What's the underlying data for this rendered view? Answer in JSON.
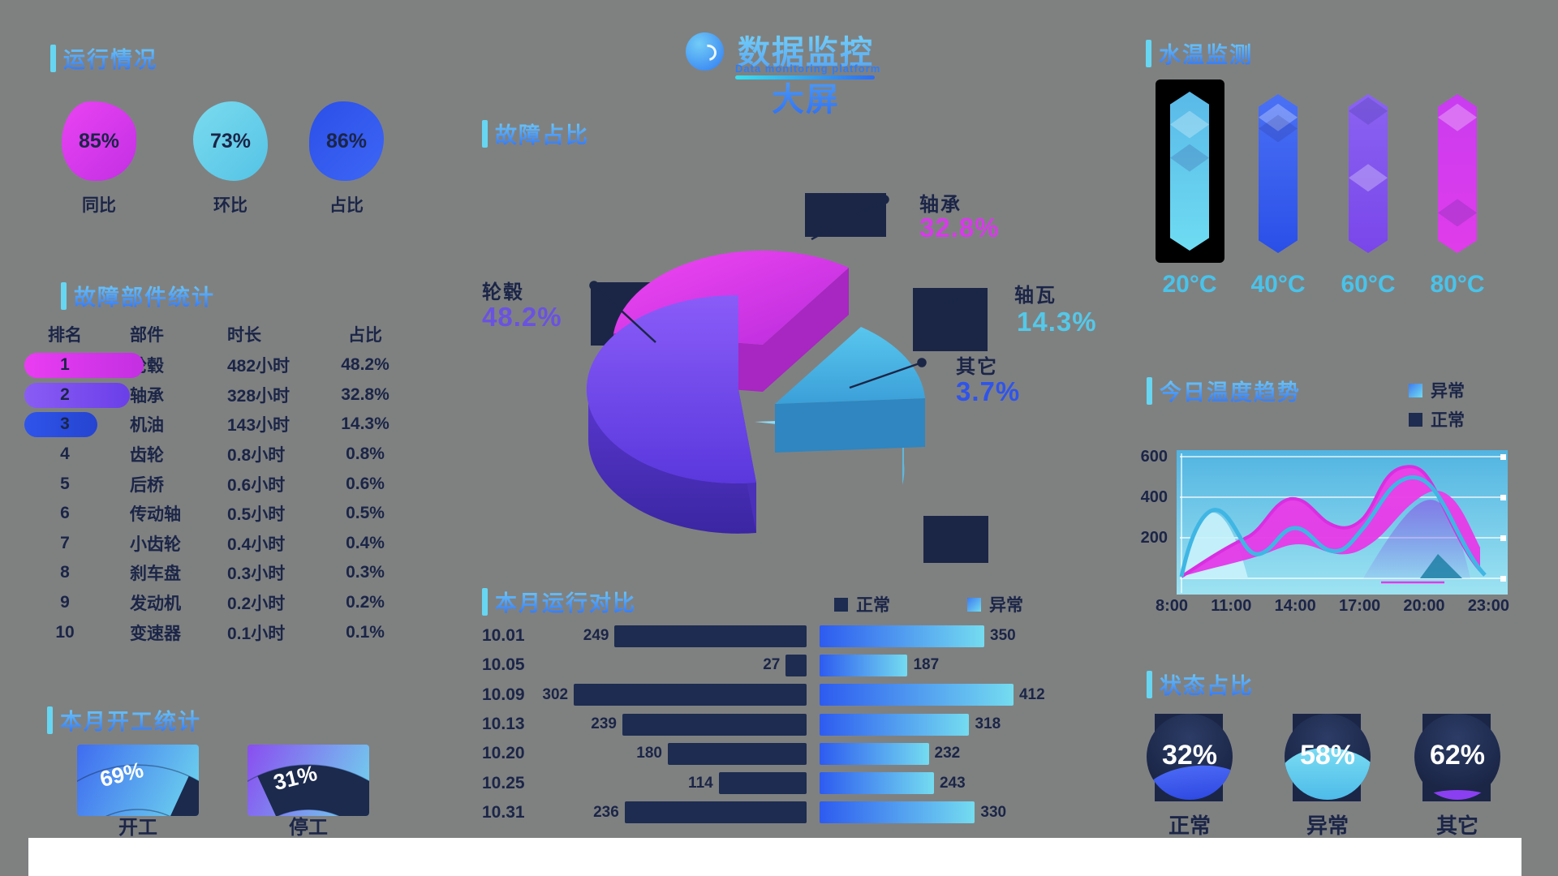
{
  "main_header": {
    "title": "数据监控大屏",
    "subtitle": "Data monitoring platform"
  },
  "overview": {
    "title": "运行情况",
    "chips": [
      {
        "value": "85%",
        "label": "同比"
      },
      {
        "value": "73%",
        "label": "环比"
      },
      {
        "value": "86%",
        "label": "占比"
      }
    ]
  },
  "rank_table": {
    "title": "故障部件统计",
    "columns": {
      "rank": "排名",
      "part": "部件",
      "hours": "时长",
      "pct": "占比"
    },
    "rows": [
      {
        "rank": "1",
        "part": "轮毂",
        "hours": "482小时",
        "pct": "48.2%"
      },
      {
        "rank": "2",
        "part": "轴承",
        "hours": "328小时",
        "pct": "32.8%"
      },
      {
        "rank": "3",
        "part": "机油",
        "hours": "143小时",
        "pct": "14.3%"
      },
      {
        "rank": "4",
        "part": "齿轮",
        "hours": "0.8小时",
        "pct": "0.8%"
      },
      {
        "rank": "5",
        "part": "后桥",
        "hours": "0.6小时",
        "pct": "0.6%"
      },
      {
        "rank": "6",
        "part": "传动轴",
        "hours": "0.5小时",
        "pct": "0.5%"
      },
      {
        "rank": "7",
        "part": "小齿轮",
        "hours": "0.4小时",
        "pct": "0.4%"
      },
      {
        "rank": "8",
        "part": "刹车盘",
        "hours": "0.3小时",
        "pct": "0.3%"
      },
      {
        "rank": "9",
        "part": "发动机",
        "hours": "0.2小时",
        "pct": "0.2%"
      },
      {
        "rank": "10",
        "part": "变速器",
        "hours": "0.1小时",
        "pct": "0.1%"
      }
    ]
  },
  "gauges": {
    "title": "本月开工统计",
    "items": [
      {
        "value": "69%",
        "label": "开工"
      },
      {
        "value": "31%",
        "label": "停工"
      }
    ]
  },
  "pie": {
    "title": "故障占比",
    "slices": [
      {
        "name": "轮毂",
        "pct": "48.2%"
      },
      {
        "name": "轴承",
        "pct": "32.8%"
      },
      {
        "name": "轴瓦",
        "pct": "14.3%"
      },
      {
        "name": "其它",
        "pct": "3.7%"
      }
    ]
  },
  "tornado": {
    "title": "本月运行对比",
    "legend": [
      {
        "label": "正常"
      },
      {
        "label": "异常"
      }
    ],
    "rows": [
      {
        "date": "10.01",
        "normal": 249,
        "abnormal": 350
      },
      {
        "date": "10.05",
        "normal": 27,
        "abnormal": 187
      },
      {
        "date": "10.09",
        "normal": 302,
        "abnormal": 412
      },
      {
        "date": "10.13",
        "normal": 239,
        "abnormal": 318
      },
      {
        "date": "10.20",
        "normal": 180,
        "abnormal": 232
      },
      {
        "date": "10.25",
        "normal": 114,
        "abnormal": 243
      },
      {
        "date": "10.31",
        "normal": 236,
        "abnormal": 330
      }
    ]
  },
  "thermo": {
    "title": "水温监测",
    "bars": [
      {
        "label": "20°C"
      },
      {
        "label": "40°C"
      },
      {
        "label": "60°C"
      },
      {
        "label": "80°C"
      }
    ]
  },
  "area": {
    "title": "今日温度趋势",
    "legend": [
      {
        "label": "异常"
      },
      {
        "label": "正常"
      }
    ],
    "y_ticks": [
      "600",
      "400",
      "200"
    ],
    "x_ticks": [
      "8:00",
      "11:00",
      "14:00",
      "17:00",
      "20:00",
      "23:00"
    ]
  },
  "liquid": {
    "title": "状态占比",
    "items": [
      {
        "value": "32%",
        "label": "正常"
      },
      {
        "value": "58%",
        "label": "异常"
      },
      {
        "value": "62%",
        "label": "其它"
      }
    ]
  },
  "colors": {
    "accent_cyan": "#66d6f2",
    "accent_blue": "#2b6df5",
    "magenta": "#d63be8",
    "purple": "#6a52e0",
    "navy": "#1b2547"
  },
  "chart_data": [
    {
      "type": "pie",
      "title": "故障占比",
      "labels": [
        "轮毂",
        "轴承",
        "轴瓦",
        "其它"
      ],
      "values": [
        48.2,
        32.8,
        14.3,
        3.7
      ],
      "colors": [
        "#7a4ff0",
        "#e23ae8",
        "#49b8e8",
        "#8fdcf5"
      ]
    },
    {
      "type": "table",
      "title": "故障部件统计",
      "columns": [
        "排名",
        "部件",
        "时长",
        "占比"
      ],
      "rows": [
        [
          "1",
          "轮毂",
          "482小时",
          "48.2%"
        ],
        [
          "2",
          "轴承",
          "328小时",
          "32.8%"
        ],
        [
          "3",
          "机油",
          "143小时",
          "14.3%"
        ],
        [
          "4",
          "齿轮",
          "0.8小时",
          "0.8%"
        ],
        [
          "5",
          "后桥",
          "0.6小时",
          "0.6%"
        ],
        [
          "6",
          "传动轴",
          "0.5小时",
          "0.5%"
        ],
        [
          "7",
          "小齿轮",
          "0.4小时",
          "0.4%"
        ],
        [
          "8",
          "刹车盘",
          "0.3小时",
          "0.3%"
        ],
        [
          "9",
          "发动机",
          "0.2小时",
          "0.2%"
        ],
        [
          "10",
          "变速器",
          "0.1小时",
          "0.1%"
        ]
      ]
    },
    {
      "type": "gauge",
      "title": "本月开工统计",
      "labels": [
        "开工",
        "停工"
      ],
      "values": [
        69,
        31
      ]
    },
    {
      "type": "bar",
      "title": "本月运行对比",
      "orientation": "horizontal-bidirectional",
      "categories": [
        "10.01",
        "10.05",
        "10.09",
        "10.13",
        "10.20",
        "10.25",
        "10.31"
      ],
      "series": [
        {
          "name": "正常",
          "values": [
            249,
            27,
            302,
            239,
            180,
            114,
            236
          ]
        },
        {
          "name": "异常",
          "values": [
            350,
            187,
            412,
            318,
            232,
            243,
            330
          ]
        }
      ]
    },
    {
      "type": "bar",
      "title": "水温监测",
      "categories": [
        "20°C",
        "40°C",
        "60°C",
        "80°C"
      ],
      "values": [
        20,
        40,
        60,
        80
      ],
      "note": "four equal-height crystal pillars, first highlighted"
    },
    {
      "type": "area",
      "title": "今日温度趋势",
      "x": [
        "8:00",
        "9:30",
        "11:00",
        "12:30",
        "14:00",
        "15:30",
        "17:00",
        "18:30",
        "20:00",
        "21:30",
        "23:00"
      ],
      "ylim": [
        0,
        600
      ],
      "series": [
        {
          "name": "异常",
          "values": [
            0,
            120,
            230,
            400,
            250,
            300,
            540,
            560,
            420,
            180,
            40
          ]
        },
        {
          "name": "正常",
          "values": [
            0,
            310,
            150,
            250,
            170,
            230,
            480,
            545,
            330,
            90,
            0
          ]
        }
      ],
      "legend_position": "top-right",
      "grid": true
    },
    {
      "type": "liquid",
      "title": "状态占比",
      "labels": [
        "正常",
        "异常",
        "其它"
      ],
      "values": [
        32,
        58,
        62
      ]
    }
  ]
}
